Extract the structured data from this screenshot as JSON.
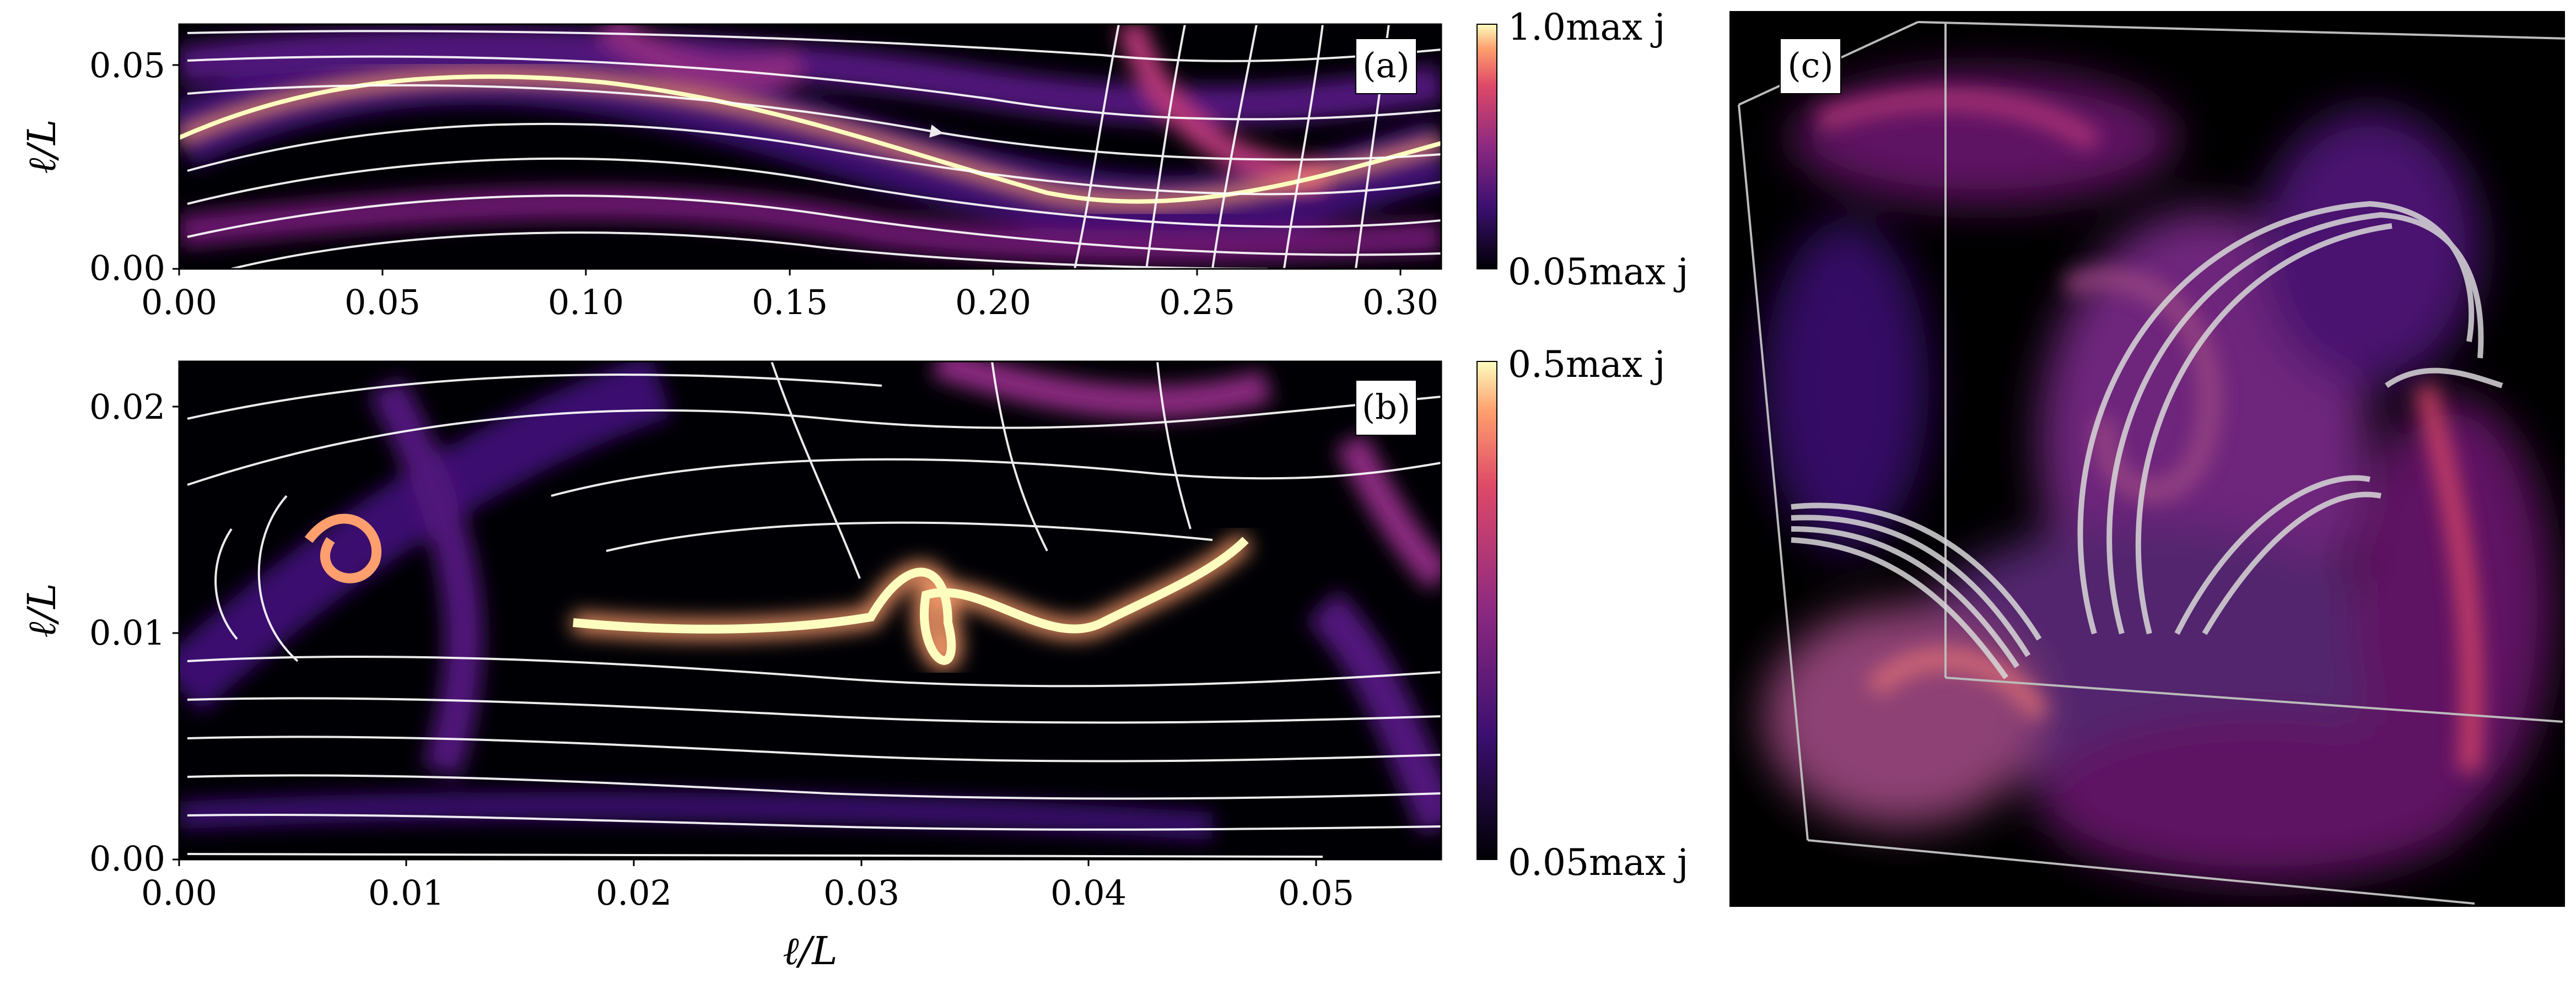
{
  "panels": {
    "a": {
      "tag": "(a)",
      "ylabel": "ℓ/L",
      "xticks": [
        "0.00",
        "0.05",
        "0.10",
        "0.15",
        "0.20",
        "0.25",
        "0.30"
      ],
      "yticks": [
        "0.00",
        "0.05"
      ],
      "colorbar": {
        "max_label": "1.0max j",
        "min_label": "0.05max j"
      }
    },
    "b": {
      "tag": "(b)",
      "ylabel": "ℓ/L",
      "xlabel": "ℓ/L",
      "xticks": [
        "0.00",
        "0.01",
        "0.02",
        "0.03",
        "0.04",
        "0.05"
      ],
      "yticks": [
        "0.00",
        "0.01",
        "0.02"
      ],
      "colorbar": {
        "max_label": "0.5max j",
        "min_label": "0.05max j"
      }
    },
    "c": {
      "tag": "(c)"
    }
  },
  "chart_data": [
    {
      "type": "heatmap",
      "panel": "a",
      "xlabel": "",
      "ylabel": "ℓ/L",
      "xlim": [
        0.0,
        0.31
      ],
      "ylim": [
        0.0,
        0.06
      ],
      "xticks": [
        0.0,
        0.05,
        0.1,
        0.15,
        0.2,
        0.25,
        0.3
      ],
      "yticks": [
        0.0,
        0.05
      ],
      "colorbar_range": [
        "0.05max j",
        "1.0max j"
      ],
      "colormap": "magma",
      "overlay": "white streamlines"
    },
    {
      "type": "heatmap",
      "panel": "b",
      "xlabel": "ℓ/L",
      "ylabel": "ℓ/L",
      "xlim": [
        0.0,
        0.0555
      ],
      "ylim": [
        0.0,
        0.022
      ],
      "xticks": [
        0.0,
        0.01,
        0.02,
        0.03,
        0.04,
        0.05
      ],
      "yticks": [
        0.0,
        0.01,
        0.02
      ],
      "colorbar_range": [
        "0.05max j",
        "0.5max j"
      ],
      "colormap": "magma",
      "overlay": "white streamlines"
    }
  ],
  "colors": {
    "background": "#ffffff",
    "map_dark": "#000004",
    "map_purple": "#51127c",
    "map_magenta": "#b73779",
    "map_orange": "#fc8961",
    "map_light": "#fcfdbf",
    "streamline": "#ffffff"
  }
}
